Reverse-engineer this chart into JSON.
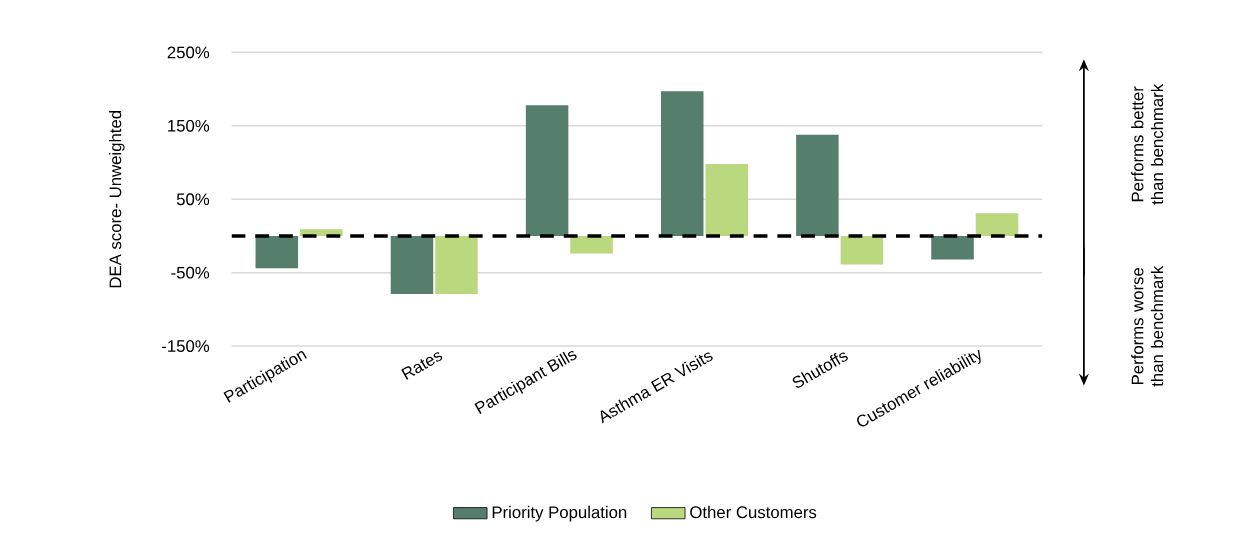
{
  "chart_data": {
    "type": "bar",
    "ylabel": "DEA score- Unweighted",
    "categories": [
      "Participation",
      "Rates",
      "Participant Bills",
      "Asthma ER Visits",
      "Shutoffs",
      "Customer reliability"
    ],
    "series": [
      {
        "name": "Priority Population",
        "color": "#557e6d",
        "values": [
          -44,
          -79,
          178,
          197,
          138,
          -32
        ]
      },
      {
        "name": "Other Customers",
        "color": "#bad87d",
        "values": [
          9,
          -79,
          -24,
          98,
          -39,
          31
        ]
      }
    ],
    "ylim": [
      -150,
      250
    ],
    "yticks": [
      {
        "value": -150,
        "label": "-150%"
      },
      {
        "value": -50,
        "label": "-50%"
      },
      {
        "value": 50,
        "label": "50%"
      },
      {
        "value": 150,
        "label": "150%"
      },
      {
        "value": 250,
        "label": "250%"
      }
    ],
    "grid": "y",
    "legend": "bottom",
    "ref_lines": [
      {
        "axis": "y",
        "value": 0,
        "color": "#000000",
        "line_style": "dashed"
      }
    ],
    "annotations": [
      "Performs better than benchmark",
      "Performs worse than benchmark"
    ]
  }
}
